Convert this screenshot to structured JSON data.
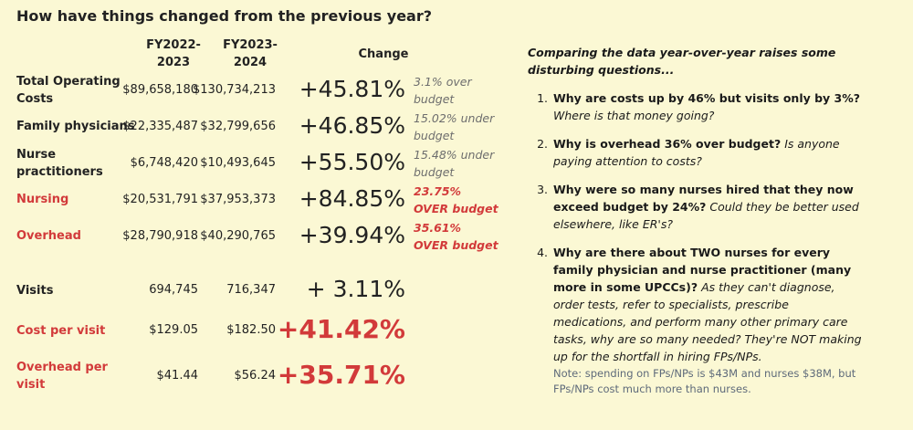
{
  "title": "How have things changed from the previous year?",
  "headers": {
    "fy1_line1": "FY2022-",
    "fy1_line2": "2023",
    "fy2_line1": "FY2023-",
    "fy2_line2": "2024",
    "change": "Change"
  },
  "rows": [
    {
      "label": "Total Operating Costs",
      "fy1": "$89,658,180",
      "fy2": "$130,734,213",
      "change": "+45.81%",
      "note": "3.1% over budget"
    },
    {
      "label": "Family physicians",
      "fy1": "$22,335,487",
      "fy2": "$32,799,656",
      "change": "+46.85%",
      "note": "15.02% under budget"
    },
    {
      "label": "Nurse practitioners",
      "fy1": "$6,748,420",
      "fy2": "$10,493,645",
      "change": "+55.50%",
      "note": "15.48% under budget"
    },
    {
      "label": "Nursing",
      "fy1": "$20,531,791",
      "fy2": "$37,953,373",
      "change": "+84.85%",
      "note_l1": "23.75%",
      "note_l2": "OVER budget"
    },
    {
      "label": "Overhead",
      "fy1": "$28,790,918",
      "fy2": "$40,290,765",
      "change": "+39.94%",
      "note_l1": "35.61%",
      "note_l2": "OVER budget"
    },
    {
      "label": "Visits",
      "fy1": "694,745",
      "fy2": "716,347",
      "change": "+ 3.11%"
    },
    {
      "label": "Cost per visit",
      "fy1": "$129.05",
      "fy2": "$182.50",
      "change": "+41.42%"
    },
    {
      "label": "Overhead per visit",
      "fy1": "$41.44",
      "fy2": "$56.24",
      "change": "+35.71%"
    }
  ],
  "commentary": {
    "intro": "Comparing the data year-over-year raises some disturbing questions...",
    "items": [
      {
        "q": "Why are costs up by 46% but visits only by 3%?",
        "a": "Where is that money going?"
      },
      {
        "q": "Why is overhead 36% over budget?",
        "a": "Is anyone paying attention to costs?"
      },
      {
        "q": "Why were so many nurses hired that they now exceed budget by 24%?",
        "a": "Could they be better used elsewhere, like ER's?"
      },
      {
        "q": "Why are there about TWO nurses for every family physician and nurse practitioner (many more in some UPCCs)?",
        "a": "As they can't diagnose, order tests, refer to specialists, prescribe medications, and perform many other primary care tasks, why are so many needed? They're NOT making up for the shortfall in hiring FPs/NPs.",
        "note": "Note: spending on FPs/NPs is $43M and nurses $38M, but FPs/NPs cost much more than nurses."
      }
    ]
  }
}
